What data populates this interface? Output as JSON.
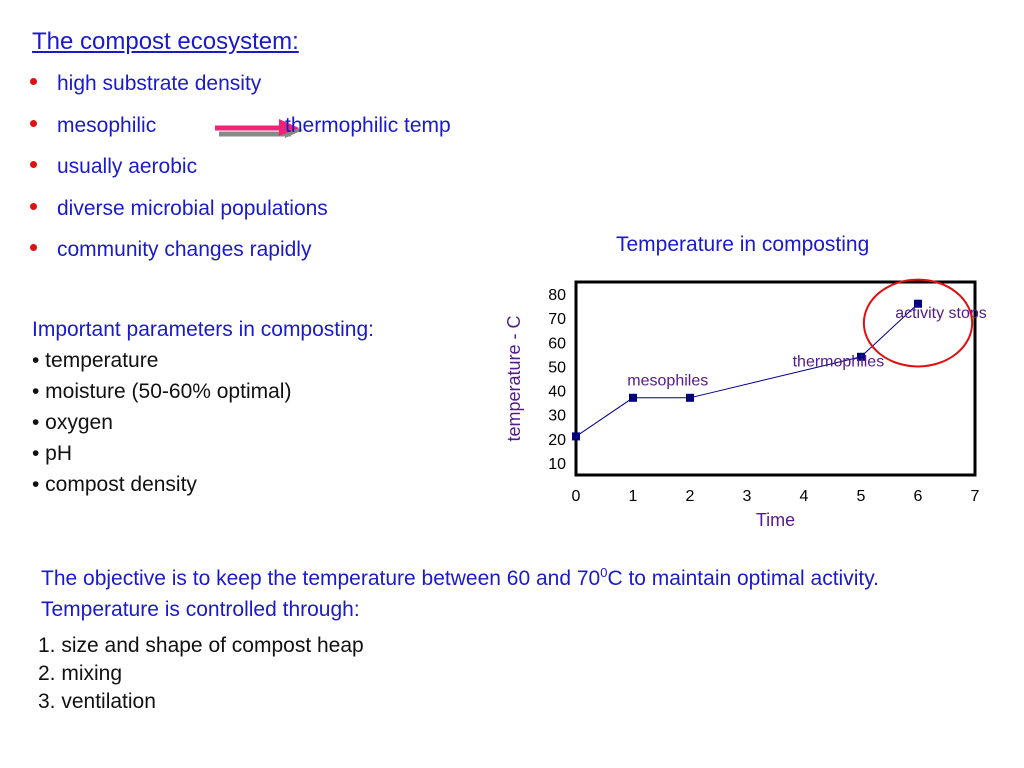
{
  "title": "The compost ecosystem:",
  "bullets": [
    {
      "text": "high substrate density"
    },
    {
      "text": "mesophilic",
      "text2": "thermophilic temp",
      "arrow": true
    },
    {
      "text": "usually aerobic"
    },
    {
      "text": "diverse microbial populations"
    },
    {
      "text": "community changes rapidly"
    }
  ],
  "params": {
    "heading": "Important parameters in composting:",
    "items": [
      "• temperature",
      "• moisture (50-60% optimal)",
      "• oxygen",
      "• pH",
      "• compost density"
    ]
  },
  "objective": {
    "before": "The objective is to keep the temperature between 60 and 70",
    "sup": "0",
    "after": "C to maintain optimal activity.  Temperature is controlled through:"
  },
  "steps": [
    "1.  size and shape of compost heap",
    "2.  mixing",
    "3.  ventilation"
  ],
  "colors": {
    "text_blue": "#1a1acc",
    "bullet_red": "#dd1111",
    "arrow_pink": "#ee2277",
    "arrow_gray": "#888888",
    "chart_label_purple": "#551a8b",
    "marker_navy": "#000080",
    "circle_red": "#dd1111"
  },
  "chart_data": {
    "type": "line",
    "title": "Temperature in composting",
    "xlabel": "Time",
    "ylabel": "temperature - C",
    "x": [
      0,
      1,
      2,
      5,
      6
    ],
    "y": [
      21,
      37,
      37,
      54,
      76
    ],
    "xlim": [
      0,
      7
    ],
    "ylim": [
      5,
      85
    ],
    "xticks": [
      0,
      1,
      2,
      3,
      4,
      5,
      6,
      7
    ],
    "yticks": [
      10,
      20,
      30,
      40,
      50,
      60,
      70,
      80
    ],
    "grid": false,
    "annotations": [
      {
        "text": "mesophiles",
        "x": 0.9,
        "y": 42
      },
      {
        "text": "thermophiles",
        "x": 3.8,
        "y": 50
      },
      {
        "text": "activity stops",
        "x": 5.6,
        "y": 70
      }
    ],
    "highlight_circle": {
      "cx": 6.0,
      "cy": 68,
      "rx": 0.95,
      "ry": 18
    }
  }
}
